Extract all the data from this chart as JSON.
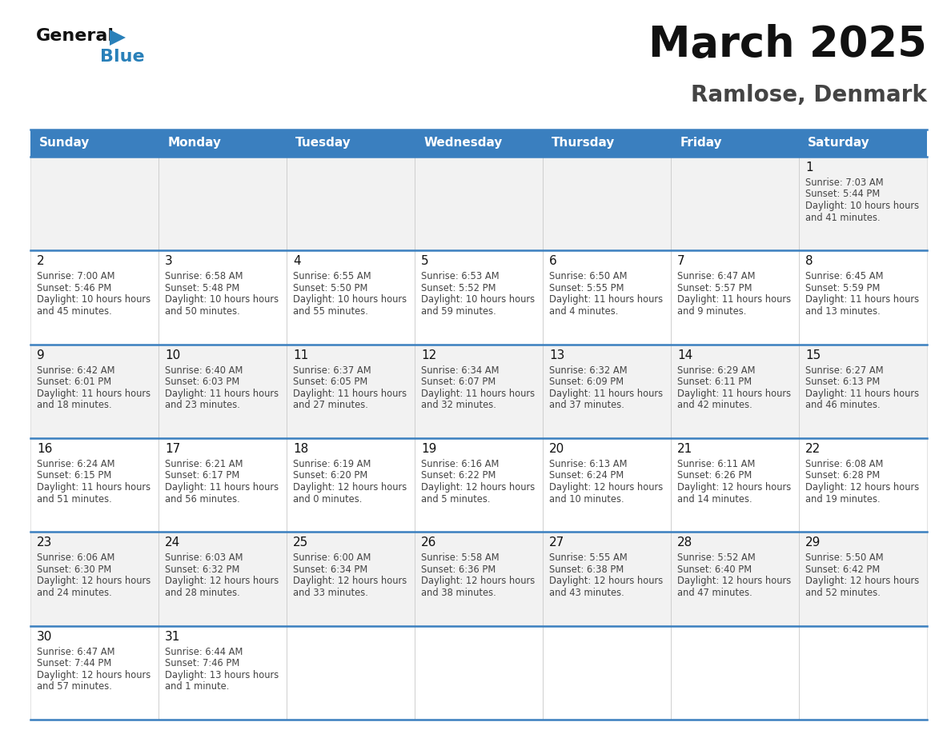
{
  "title": "March 2025",
  "subtitle": "Ramlose, Denmark",
  "header_color": "#3A7FBF",
  "header_text_color": "#FFFFFF",
  "days_of_week": [
    "Sunday",
    "Monday",
    "Tuesday",
    "Wednesday",
    "Thursday",
    "Friday",
    "Saturday"
  ],
  "cell_bg_even": "#F2F2F2",
  "cell_bg_odd": "#FFFFFF",
  "border_color": "#3A7FBF",
  "text_color": "#444444",
  "day_num_color": "#111111",
  "calendar": [
    [
      {
        "day": null
      },
      {
        "day": null
      },
      {
        "day": null
      },
      {
        "day": null
      },
      {
        "day": null
      },
      {
        "day": null
      },
      {
        "day": 1,
        "sunrise": "7:03 AM",
        "sunset": "5:44 PM",
        "daylight": "10 hours and 41 minutes."
      }
    ],
    [
      {
        "day": 2,
        "sunrise": "7:00 AM",
        "sunset": "5:46 PM",
        "daylight": "10 hours and 45 minutes."
      },
      {
        "day": 3,
        "sunrise": "6:58 AM",
        "sunset": "5:48 PM",
        "daylight": "10 hours and 50 minutes."
      },
      {
        "day": 4,
        "sunrise": "6:55 AM",
        "sunset": "5:50 PM",
        "daylight": "10 hours and 55 minutes."
      },
      {
        "day": 5,
        "sunrise": "6:53 AM",
        "sunset": "5:52 PM",
        "daylight": "10 hours and 59 minutes."
      },
      {
        "day": 6,
        "sunrise": "6:50 AM",
        "sunset": "5:55 PM",
        "daylight": "11 hours and 4 minutes."
      },
      {
        "day": 7,
        "sunrise": "6:47 AM",
        "sunset": "5:57 PM",
        "daylight": "11 hours and 9 minutes."
      },
      {
        "day": 8,
        "sunrise": "6:45 AM",
        "sunset": "5:59 PM",
        "daylight": "11 hours and 13 minutes."
      }
    ],
    [
      {
        "day": 9,
        "sunrise": "6:42 AM",
        "sunset": "6:01 PM",
        "daylight": "11 hours and 18 minutes."
      },
      {
        "day": 10,
        "sunrise": "6:40 AM",
        "sunset": "6:03 PM",
        "daylight": "11 hours and 23 minutes."
      },
      {
        "day": 11,
        "sunrise": "6:37 AM",
        "sunset": "6:05 PM",
        "daylight": "11 hours and 27 minutes."
      },
      {
        "day": 12,
        "sunrise": "6:34 AM",
        "sunset": "6:07 PM",
        "daylight": "11 hours and 32 minutes."
      },
      {
        "day": 13,
        "sunrise": "6:32 AM",
        "sunset": "6:09 PM",
        "daylight": "11 hours and 37 minutes."
      },
      {
        "day": 14,
        "sunrise": "6:29 AM",
        "sunset": "6:11 PM",
        "daylight": "11 hours and 42 minutes."
      },
      {
        "day": 15,
        "sunrise": "6:27 AM",
        "sunset": "6:13 PM",
        "daylight": "11 hours and 46 minutes."
      }
    ],
    [
      {
        "day": 16,
        "sunrise": "6:24 AM",
        "sunset": "6:15 PM",
        "daylight": "11 hours and 51 minutes."
      },
      {
        "day": 17,
        "sunrise": "6:21 AM",
        "sunset": "6:17 PM",
        "daylight": "11 hours and 56 minutes."
      },
      {
        "day": 18,
        "sunrise": "6:19 AM",
        "sunset": "6:20 PM",
        "daylight": "12 hours and 0 minutes."
      },
      {
        "day": 19,
        "sunrise": "6:16 AM",
        "sunset": "6:22 PM",
        "daylight": "12 hours and 5 minutes."
      },
      {
        "day": 20,
        "sunrise": "6:13 AM",
        "sunset": "6:24 PM",
        "daylight": "12 hours and 10 minutes."
      },
      {
        "day": 21,
        "sunrise": "6:11 AM",
        "sunset": "6:26 PM",
        "daylight": "12 hours and 14 minutes."
      },
      {
        "day": 22,
        "sunrise": "6:08 AM",
        "sunset": "6:28 PM",
        "daylight": "12 hours and 19 minutes."
      }
    ],
    [
      {
        "day": 23,
        "sunrise": "6:06 AM",
        "sunset": "6:30 PM",
        "daylight": "12 hours and 24 minutes."
      },
      {
        "day": 24,
        "sunrise": "6:03 AM",
        "sunset": "6:32 PM",
        "daylight": "12 hours and 28 minutes."
      },
      {
        "day": 25,
        "sunrise": "6:00 AM",
        "sunset": "6:34 PM",
        "daylight": "12 hours and 33 minutes."
      },
      {
        "day": 26,
        "sunrise": "5:58 AM",
        "sunset": "6:36 PM",
        "daylight": "12 hours and 38 minutes."
      },
      {
        "day": 27,
        "sunrise": "5:55 AM",
        "sunset": "6:38 PM",
        "daylight": "12 hours and 43 minutes."
      },
      {
        "day": 28,
        "sunrise": "5:52 AM",
        "sunset": "6:40 PM",
        "daylight": "12 hours and 47 minutes."
      },
      {
        "day": 29,
        "sunrise": "5:50 AM",
        "sunset": "6:42 PM",
        "daylight": "12 hours and 52 minutes."
      }
    ],
    [
      {
        "day": 30,
        "sunrise": "6:47 AM",
        "sunset": "7:44 PM",
        "daylight": "12 hours and 57 minutes."
      },
      {
        "day": 31,
        "sunrise": "6:44 AM",
        "sunset": "7:46 PM",
        "daylight": "13 hours and 1 minute."
      },
      {
        "day": null
      },
      {
        "day": null
      },
      {
        "day": null
      },
      {
        "day": null
      },
      {
        "day": null
      }
    ]
  ]
}
